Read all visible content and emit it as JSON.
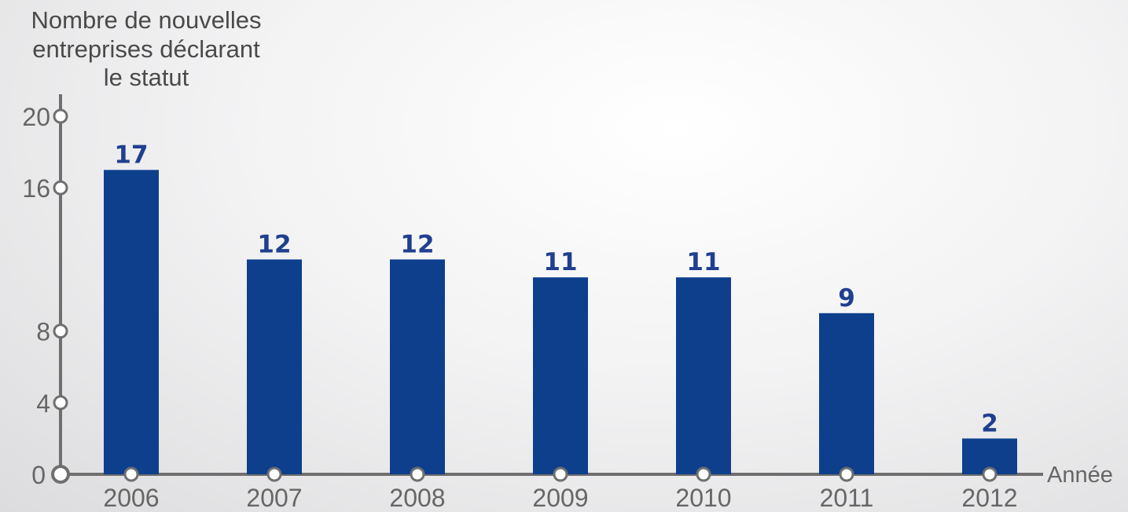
{
  "chart_data": {
    "type": "bar",
    "ylabel_lines": [
      "Nombre de nouvelles",
      "entreprises déclarant",
      "le statut"
    ],
    "xlabel": "Année",
    "categories": [
      "2006",
      "2007",
      "2008",
      "2009",
      "2010",
      "2011",
      "2012"
    ],
    "values": [
      17,
      12,
      12,
      11,
      11,
      9,
      2
    ],
    "value_labels": [
      "17",
      "12",
      "12",
      "11",
      "11",
      "9",
      "2"
    ],
    "yticks": [
      0,
      4,
      8,
      16,
      20
    ],
    "ytick_labels": [
      "0",
      "4",
      "8",
      "16",
      "20"
    ],
    "ylim": [
      0,
      20
    ],
    "grid": false,
    "legend": "none",
    "colors": {
      "bar": "#0d3f8c",
      "axis": "#6f6f6f",
      "data_label": "#1f3f8f"
    }
  }
}
